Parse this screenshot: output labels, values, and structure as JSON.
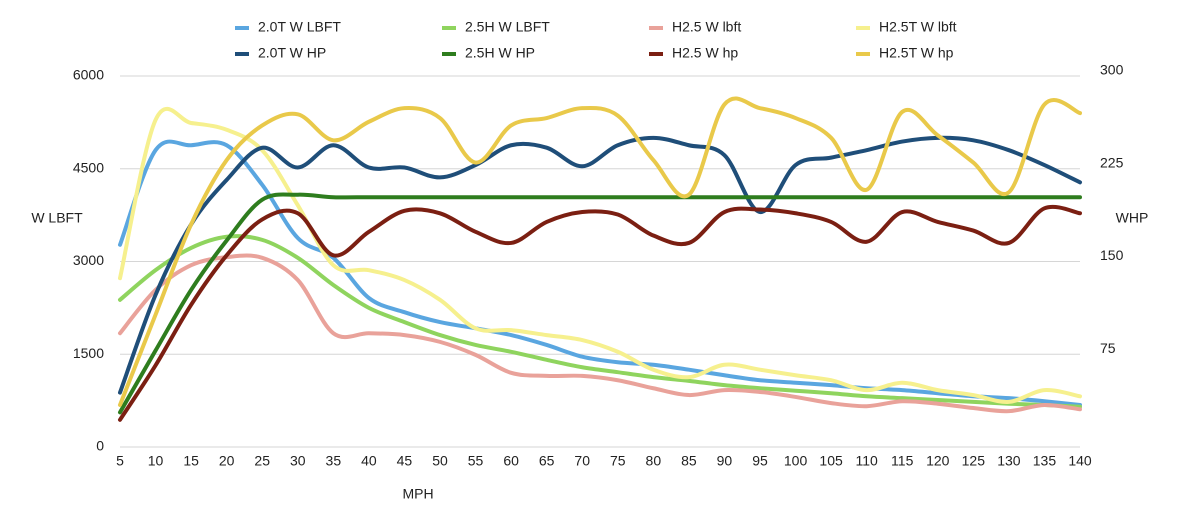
{
  "chart_data": {
    "type": "line",
    "y_label": "W LBFT",
    "y2_label": "WHP",
    "x_label": "MPH",
    "x": [
      5,
      10,
      15,
      20,
      25,
      30,
      35,
      40,
      45,
      50,
      55,
      60,
      65,
      70,
      75,
      80,
      85,
      90,
      95,
      100,
      105,
      110,
      115,
      120,
      125,
      130,
      135,
      140
    ],
    "xlim": [
      5,
      140
    ],
    "xticks": [
      5,
      10,
      15,
      20,
      25,
      30,
      35,
      40,
      45,
      50,
      55,
      60,
      65,
      70,
      75,
      80,
      85,
      90,
      95,
      100,
      105,
      110,
      115,
      120,
      125,
      130,
      135,
      140
    ],
    "ylim": [
      0,
      6000
    ],
    "yticks": [
      0,
      1500,
      3000,
      4500,
      6000
    ],
    "y2lim": [
      0,
      300
    ],
    "y2ticks": [
      75,
      150,
      225,
      300
    ],
    "grid": true,
    "series": [
      {
        "name": "2.0T W LBFT",
        "color": "#5aa6e0",
        "values": [
          3270,
          4800,
          4880,
          4880,
          4240,
          3380,
          3060,
          2410,
          2180,
          2020,
          1920,
          1810,
          1650,
          1460,
          1370,
          1330,
          1250,
          1160,
          1080,
          1040,
          1000,
          950,
          920,
          870,
          820,
          790,
          740,
          680
        ]
      },
      {
        "name": "2.5H W LBFT",
        "color": "#8fd45e",
        "values": [
          2380,
          2860,
          3220,
          3400,
          3350,
          3060,
          2620,
          2250,
          2020,
          1810,
          1650,
          1540,
          1410,
          1290,
          1210,
          1130,
          1070,
          1000,
          950,
          910,
          870,
          820,
          790,
          760,
          730,
          700,
          680,
          650
        ]
      },
      {
        "name": "H2.5 W lbft",
        "color": "#e9a29a",
        "values": [
          1840,
          2540,
          2940,
          3070,
          3060,
          2700,
          1840,
          1840,
          1810,
          1700,
          1490,
          1200,
          1150,
          1150,
          1080,
          950,
          840,
          920,
          890,
          810,
          710,
          660,
          740,
          700,
          630,
          580,
          680,
          610
        ]
      },
      {
        "name": "H2.5T W lbft",
        "color": "#f6f08e",
        "values": [
          2730,
          5290,
          5240,
          5130,
          4800,
          3910,
          2940,
          2860,
          2700,
          2380,
          1920,
          1890,
          1810,
          1730,
          1540,
          1250,
          1130,
          1330,
          1250,
          1160,
          1080,
          920,
          1040,
          920,
          840,
          730,
          920,
          820
        ]
      },
      {
        "name": "2.0T W HP",
        "color": "#1f4e79",
        "axis": "y2",
        "values": [
          44,
          123,
          180,
          216,
          242,
          226,
          244,
          226,
          226,
          218,
          228,
          244,
          242,
          227,
          244,
          250,
          244,
          236,
          190,
          228,
          234,
          240,
          247,
          250,
          248,
          240,
          228,
          214
        ]
      },
      {
        "name": "2.5H W HP",
        "color": "#2e7d1e",
        "axis": "y2",
        "values": [
          28,
          78,
          127,
          167,
          200,
          204,
          202,
          202,
          202,
          202,
          202,
          202,
          202,
          202,
          202,
          202,
          202,
          202,
          202,
          202,
          202,
          202,
          202,
          202,
          202,
          202,
          202,
          202
        ]
      },
      {
        "name": "H2.5 W hp",
        "color": "#7b1f12",
        "axis": "y2",
        "values": [
          22,
          66,
          115,
          155,
          184,
          189,
          155,
          174,
          191,
          189,
          174,
          165,
          182,
          190,
          188,
          171,
          165,
          190,
          192,
          189,
          182,
          166,
          190,
          182,
          175,
          165,
          193,
          189
        ]
      },
      {
        "name": "H2.5T W hp",
        "color": "#e9c94a",
        "axis": "y2",
        "values": [
          34,
          107,
          180,
          232,
          260,
          269,
          248,
          263,
          274,
          266,
          230,
          260,
          266,
          274,
          268,
          232,
          204,
          277,
          274,
          266,
          250,
          208,
          271,
          252,
          230,
          206,
          277,
          270
        ]
      }
    ]
  }
}
